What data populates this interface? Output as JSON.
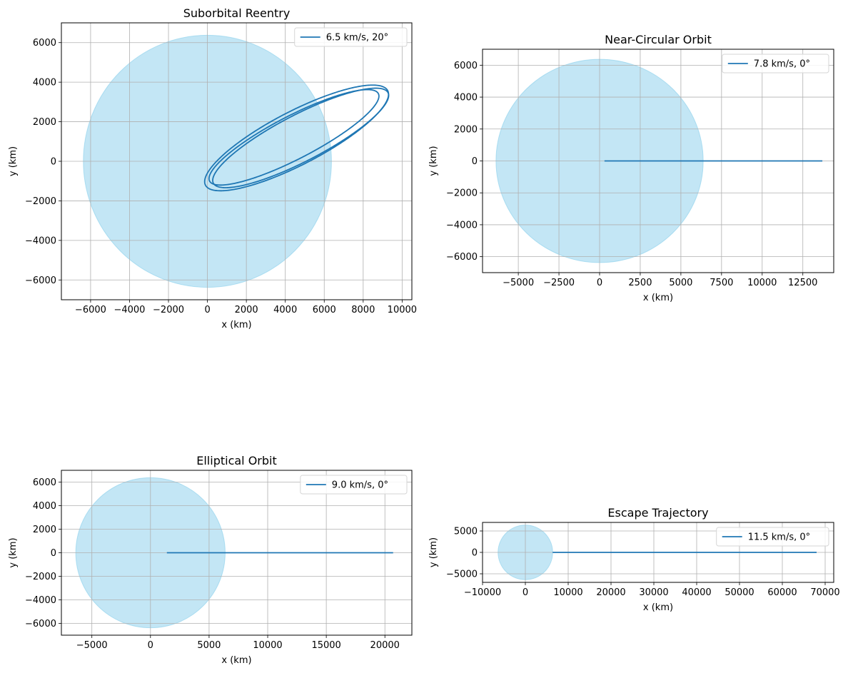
{
  "chart_data": [
    {
      "type": "line",
      "title": "Suborbital Reentry",
      "xlabel": "x (km)",
      "ylabel": "y (km)",
      "xlim": [
        -7500,
        10500
      ],
      "ylim": [
        -7000,
        7000
      ],
      "xticks": [
        -6000,
        -4000,
        -2000,
        0,
        2000,
        4000,
        6000,
        8000,
        10000
      ],
      "yticks": [
        -6000,
        -4000,
        -2000,
        0,
        2000,
        4000,
        6000
      ],
      "grid": true,
      "legend_position": "top-right",
      "earth": {
        "cx": 0,
        "cy": 0,
        "r": 6371,
        "color": "#87ceeb"
      },
      "series": [
        {
          "name": "6.5 km/s, 20°",
          "color": "#1f77b4",
          "orbit_loops": [
            {
              "center": [
                4580,
                1181
              ],
              "a": 5255,
              "b": 1350,
              "rotation_deg": 27
            },
            {
              "center": [
                4790,
                1181
              ],
              "a": 5035,
              "b": 1180,
              "rotation_deg": 27
            },
            {
              "center": [
                4445,
                1211
              ],
              "a": 4865,
              "b": 1090,
              "rotation_deg": 27
            }
          ]
        }
      ]
    },
    {
      "type": "line",
      "title": "Near-Circular Orbit",
      "xlabel": "x (km)",
      "ylabel": "y (km)",
      "xlim": [
        -7200,
        14400
      ],
      "ylim": [
        -7000,
        7000
      ],
      "xticks": [
        -5000,
        -2500,
        0,
        2500,
        5000,
        7500,
        10000,
        12500
      ],
      "yticks": [
        -6000,
        -4000,
        -2000,
        0,
        2000,
        4000,
        6000
      ],
      "grid": true,
      "legend_position": "top-right",
      "earth": {
        "cx": 0,
        "cy": 0,
        "r": 6371,
        "color": "#87ceeb"
      },
      "series": [
        {
          "name": "7.8 km/s, 0°",
          "color": "#1f77b4",
          "x": [
            300,
            13700
          ],
          "y": [
            0,
            0
          ]
        }
      ]
    },
    {
      "type": "line",
      "title": "Elliptical Orbit",
      "xlabel": "x (km)",
      "ylabel": "y (km)",
      "xlim": [
        -7600,
        22300
      ],
      "ylim": [
        -7000,
        7000
      ],
      "xticks": [
        -5000,
        0,
        5000,
        10000,
        15000,
        20000
      ],
      "yticks": [
        -6000,
        -4000,
        -2000,
        0,
        2000,
        4000,
        6000
      ],
      "grid": true,
      "legend_position": "top-right",
      "earth": {
        "cx": 0,
        "cy": 0,
        "r": 6371,
        "color": "#87ceeb"
      },
      "series": [
        {
          "name": "9.0 km/s, 0°",
          "color": "#1f77b4",
          "x": [
            1400,
            20700
          ],
          "y": [
            0,
            0
          ]
        }
      ]
    },
    {
      "type": "line",
      "title": "Escape Trajectory",
      "xlabel": "x (km)",
      "ylabel": "y (km)",
      "xlim": [
        -10000,
        72000
      ],
      "ylim": [
        -7000,
        7000
      ],
      "xticks": [
        -10000,
        0,
        10000,
        20000,
        30000,
        40000,
        50000,
        60000,
        70000
      ],
      "yticks": [
        -5000,
        0,
        5000
      ],
      "grid": true,
      "legend_position": "top-right",
      "earth": {
        "cx": 0,
        "cy": 0,
        "r": 6371,
        "color": "#87ceeb"
      },
      "series": [
        {
          "name": "11.5 km/s, 0°",
          "color": "#1f77b4",
          "x": [
            6371,
            68000
          ],
          "y": [
            0,
            0
          ]
        }
      ]
    }
  ]
}
